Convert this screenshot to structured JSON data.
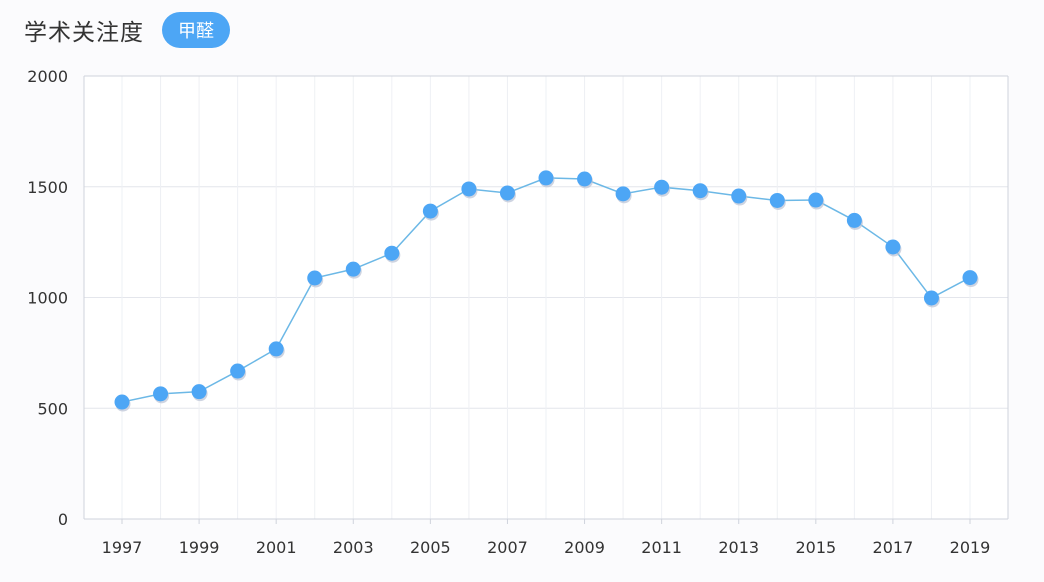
{
  "header": {
    "title": "学术关注度",
    "tag_label": "甲醛"
  },
  "colors": {
    "accent": "#4da6f5",
    "line": "#6cb8e6",
    "point": "#4da6f5",
    "grid": "#e4e6ec",
    "axis": "#cfd3dc"
  },
  "chart_data": {
    "type": "line",
    "title": "",
    "xlabel": "",
    "ylabel": "",
    "x": [
      1997,
      1998,
      1999,
      2000,
      2001,
      2002,
      2003,
      2004,
      2005,
      2006,
      2007,
      2008,
      2009,
      2010,
      2011,
      2012,
      2013,
      2014,
      2015,
      2016,
      2017,
      2018,
      2019
    ],
    "x_tick_labels": [
      "1997",
      "1999",
      "2001",
      "2003",
      "2005",
      "2007",
      "2009",
      "2011",
      "2013",
      "2015",
      "2017",
      "2019"
    ],
    "series": [
      {
        "values": [
          528,
          565,
          575,
          668,
          768,
          1088,
          1128,
          1200,
          1390,
          1490,
          1472,
          1540,
          1535,
          1468,
          1498,
          1482,
          1458,
          1438,
          1440,
          1348,
          1228,
          998,
          1090
        ]
      }
    ],
    "ylim": [
      0,
      2000
    ],
    "y_ticks": [
      0,
      500,
      1000,
      1500,
      2000
    ],
    "y_tick_labels": [
      "0",
      "500",
      "1000",
      "1500",
      "2000"
    ],
    "grid": true,
    "legend": "none"
  }
}
